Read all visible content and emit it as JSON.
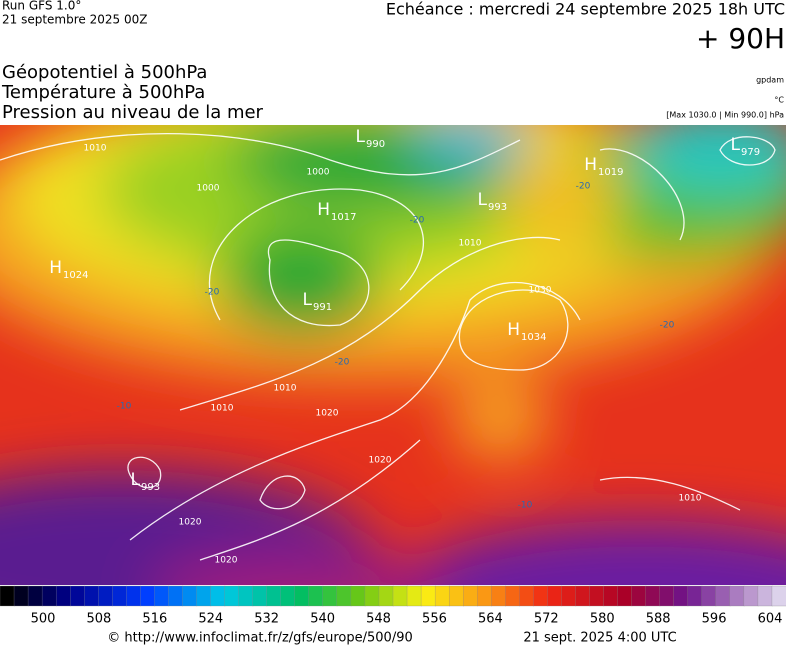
{
  "header": {
    "run": "Run GFS 1.0°",
    "run_date": "21 septembre 2025 00Z",
    "echeance": "Echéance : mercredi 24 septembre 2025 18h UTC",
    "lead": "+ 90H"
  },
  "titles": [
    "Géopotentiel à 500hPa",
    "Température à 500hPa",
    "Pression au niveau de la mer"
  ],
  "units": [
    "gpdam",
    "°C",
    "[Max 1030.0 | Min 990.0] hPa"
  ],
  "centers": [
    {
      "type": "H",
      "value": 1017
    },
    {
      "type": "H",
      "value": 1024
    },
    {
      "type": "L",
      "value": 991
    },
    {
      "type": "L",
      "value": 990
    },
    {
      "type": "L",
      "value": 993
    },
    {
      "type": "H",
      "value": 1019
    },
    {
      "type": "L",
      "value": 979
    },
    {
      "type": "H",
      "value": 1034
    },
    {
      "type": "L",
      "value": 993
    }
  ],
  "contour_labels": [
    1010,
    1000,
    1000,
    1010,
    1010,
    1010,
    1020,
    1020,
    1020,
    1020,
    1010,
    1030,
    -20,
    -20,
    -20,
    -20,
    -10,
    -10,
    -20
  ],
  "colorbar": {
    "ticks": [
      500,
      508,
      516,
      524,
      532,
      540,
      548,
      556,
      564,
      572,
      580,
      588,
      596,
      604
    ]
  },
  "footer": {
    "url": "© http://www.infoclimat.fr/z/gfs/europe/500/90",
    "time": "21 sept. 2025  4:00 UTC"
  }
}
